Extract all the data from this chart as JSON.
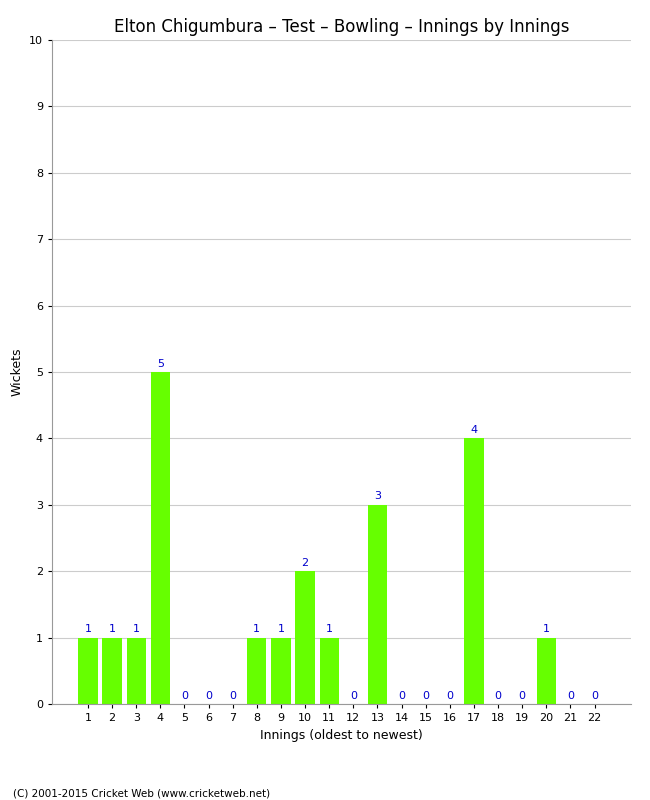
{
  "title": "Elton Chigumbura – Test – Bowling – Innings by Innings",
  "xlabel": "Innings (oldest to newest)",
  "ylabel": "Wickets",
  "categories": [
    "1",
    "2",
    "3",
    "4",
    "5",
    "6",
    "7",
    "8",
    "9",
    "10",
    "11",
    "12",
    "13",
    "14",
    "15",
    "16",
    "17",
    "18",
    "19",
    "20",
    "21",
    "22"
  ],
  "values": [
    1,
    1,
    1,
    5,
    0,
    0,
    0,
    1,
    1,
    2,
    1,
    0,
    3,
    0,
    0,
    0,
    4,
    0,
    0,
    1,
    0,
    0
  ],
  "bar_color": "#66ff00",
  "label_color": "#0000cc",
  "background_color": "#ffffff",
  "ylim": [
    0,
    10
  ],
  "yticks": [
    0,
    1,
    2,
    3,
    4,
    5,
    6,
    7,
    8,
    9,
    10
  ],
  "title_fontsize": 12,
  "axis_label_fontsize": 9,
  "tick_fontsize": 8,
  "annotation_fontsize": 8,
  "footer": "(C) 2001-2015 Cricket Web (www.cricketweb.net)",
  "grid_color": "#cccccc",
  "bar_width": 0.8
}
